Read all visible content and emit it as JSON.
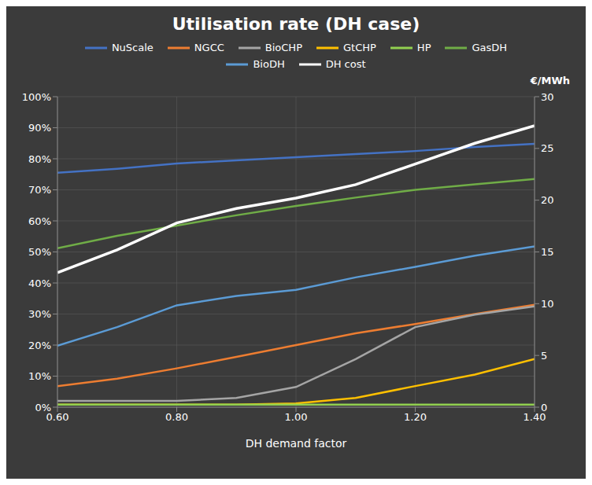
{
  "chart_data": {
    "type": "line",
    "title": "Utilisation rate (DH case)",
    "x_label": "DH demand factor",
    "y2_label": "€/MWh",
    "x": [
      0.6,
      0.7,
      0.8,
      0.9,
      1.0,
      1.1,
      1.2,
      1.3,
      1.4
    ],
    "xlim": [
      0.6,
      1.4
    ],
    "xticks": [
      {
        "value": 0.6,
        "label": "0.60"
      },
      {
        "value": 0.8,
        "label": "0.80"
      },
      {
        "value": 1.0,
        "label": "1.00"
      },
      {
        "value": 1.2,
        "label": "1.20"
      },
      {
        "value": 1.4,
        "label": "1.40"
      }
    ],
    "ylim": [
      0.0,
      1.0
    ],
    "yticks": [
      {
        "value": 0.0,
        "label": "0%"
      },
      {
        "value": 0.1,
        "label": "10%"
      },
      {
        "value": 0.2,
        "label": "20%"
      },
      {
        "value": 0.3,
        "label": "30%"
      },
      {
        "value": 0.4,
        "label": "40%"
      },
      {
        "value": 0.5,
        "label": "50%"
      },
      {
        "value": 0.6,
        "label": "60%"
      },
      {
        "value": 0.7,
        "label": "70%"
      },
      {
        "value": 0.8,
        "label": "80%"
      },
      {
        "value": 0.9,
        "label": "90%"
      },
      {
        "value": 1.0,
        "label": "100%"
      }
    ],
    "y2lim": [
      0,
      30
    ],
    "y2ticks": [
      0,
      5,
      10,
      15,
      20,
      25,
      30
    ],
    "grid": true,
    "legend": "top",
    "series": [
      {
        "name": "NuScale",
        "color": "#4472c4",
        "values": [
          0.755,
          0.768,
          0.785,
          0.795,
          0.805,
          0.815,
          0.825,
          0.838,
          0.848
        ]
      },
      {
        "name": "NGCC",
        "color": "#ed7d31",
        "values": [
          0.068,
          0.092,
          0.125,
          0.162,
          0.2,
          0.238,
          0.268,
          0.3,
          0.33
        ]
      },
      {
        "name": "BioCHP",
        "color": "#a5a5a5",
        "values": [
          0.02,
          0.02,
          0.02,
          0.03,
          0.065,
          0.155,
          0.258,
          0.298,
          0.325
        ]
      },
      {
        "name": "GtCHP",
        "color": "#ffc000",
        "values": [
          0.008,
          0.008,
          0.008,
          0.008,
          0.012,
          0.03,
          0.068,
          0.105,
          0.155
        ]
      },
      {
        "name": "HP",
        "color": "#92d050",
        "values": [
          0.008,
          0.008,
          0.008,
          0.008,
          0.008,
          0.008,
          0.008,
          0.008,
          0.008
        ]
      },
      {
        "name": "GasDH",
        "color": "#70ad47",
        "values": [
          0.512,
          0.552,
          0.585,
          0.618,
          0.648,
          0.675,
          0.7,
          0.718,
          0.735
        ]
      },
      {
        "name": "BioDH",
        "color": "#5b9bd5",
        "values": [
          0.198,
          0.258,
          0.328,
          0.358,
          0.378,
          0.418,
          0.452,
          0.488,
          0.518
        ]
      },
      {
        "name": "DH cost",
        "color": "#ffffff",
        "axis": "y2",
        "values": [
          13.0,
          15.2,
          17.8,
          19.2,
          20.2,
          21.5,
          23.5,
          25.5,
          27.2
        ]
      }
    ]
  }
}
